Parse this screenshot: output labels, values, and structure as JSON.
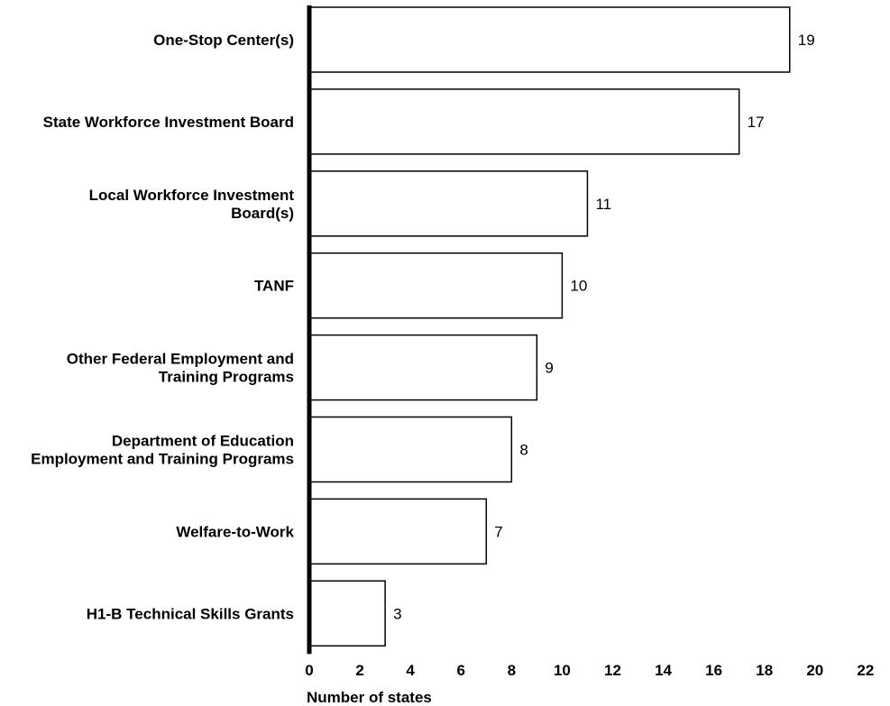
{
  "chart_data": {
    "type": "bar",
    "orientation": "horizontal",
    "categories": [
      [
        "One-Stop Center(s)"
      ],
      [
        "State Workforce Investment Board"
      ],
      [
        "Local Workforce Investment",
        "Board(s)"
      ],
      [
        "TANF"
      ],
      [
        "Other Federal Employment and",
        "Training Programs"
      ],
      [
        "Department of Education",
        "Employment and Training Programs"
      ],
      [
        "Welfare-to-Work"
      ],
      [
        "H1-B Technical Skills Grants"
      ]
    ],
    "values": [
      19,
      17,
      11,
      10,
      9,
      8,
      7,
      3
    ],
    "xlabel": "Number of states",
    "xlim": [
      0,
      22
    ],
    "xticks": [
      0,
      2,
      4,
      6,
      8,
      10,
      12,
      14,
      16,
      18,
      20,
      22
    ],
    "grid": false,
    "bar_fill": "#ffffff",
    "bar_stroke": "#000000"
  }
}
